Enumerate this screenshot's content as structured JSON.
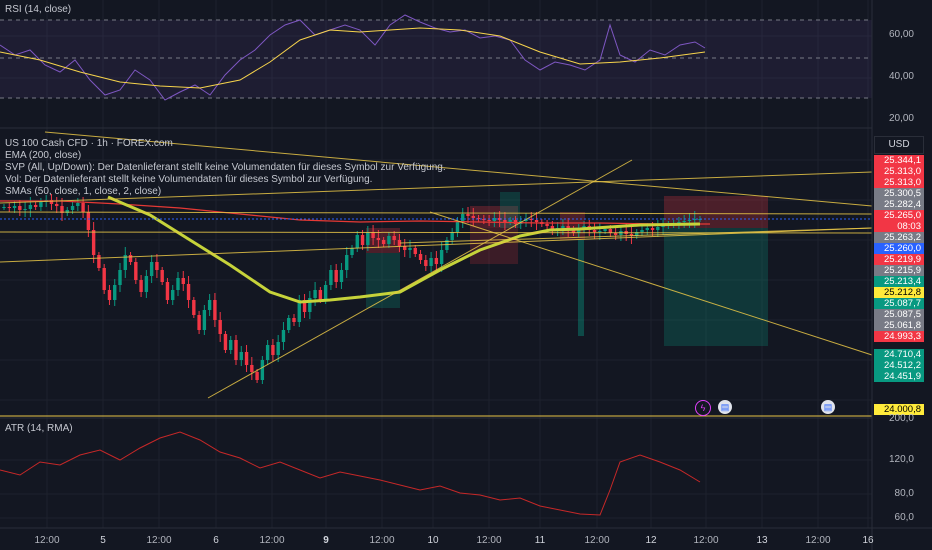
{
  "rsi_pane": {
    "label": "RSI (14, close)",
    "axis_ticks": [
      "60,00",
      "40,00",
      "20,00"
    ]
  },
  "main_legend": {
    "symbol": "US 100 Cash CFD · 1h · FOREX.com",
    "ema": "EMA (200, close)",
    "svp": "SVP (All, Up/Down): Der Datenlieferant stellt keine Volumendaten für dieses Symbol zur Verfügung.",
    "vol": "Vol: Der Datenlieferant stellt keine Volumendaten für dieses Symbol zur Verfügung.",
    "smas": "SMAs (50, close, 1, close, 2, close)"
  },
  "currency": "USD",
  "price_tags": [
    {
      "text": "25.344,1",
      "bg": "#f23645",
      "fg": "#ffffff"
    },
    {
      "text": "25.313,0",
      "bg": "#f23645",
      "fg": "#ffffff"
    },
    {
      "text": "25.313,0",
      "bg": "#f23645",
      "fg": "#ffffff"
    },
    {
      "text": "25.300,5",
      "bg": "#787b86",
      "fg": "#ffffff"
    },
    {
      "text": "25.282,4",
      "bg": "#787b86",
      "fg": "#ffffff"
    },
    {
      "text": "25.265,0",
      "bg": "#f23645",
      "fg": "#ffffff"
    },
    {
      "text": "08:03",
      "bg": "#f23645",
      "fg": "#ffffff"
    },
    {
      "text": "25.263,2",
      "bg": "#787b86",
      "fg": "#ffffff"
    },
    {
      "text": "25.260,0",
      "bg": "#2962ff",
      "fg": "#ffffff"
    },
    {
      "text": "25.219,9",
      "bg": "#f23645",
      "fg": "#ffffff"
    },
    {
      "text": "25.215,9",
      "bg": "#787b86",
      "fg": "#ffffff"
    },
    {
      "text": "25.213,4",
      "bg": "#089981",
      "fg": "#ffffff"
    },
    {
      "text": "25.212,8",
      "bg": "#ffeb3b",
      "fg": "#000000"
    },
    {
      "text": "25.087,7",
      "bg": "#089981",
      "fg": "#ffffff"
    },
    {
      "text": "25.087,5",
      "bg": "#787b86",
      "fg": "#ffffff"
    },
    {
      "text": "25.061,8",
      "bg": "#787b86",
      "fg": "#ffffff"
    },
    {
      "text": "24.993,3",
      "bg": "#f23645",
      "fg": "#ffffff"
    },
    {
      "text": "24.710,4",
      "bg": "#089981",
      "fg": "#ffffff"
    },
    {
      "text": "24.512,2",
      "bg": "#089981",
      "fg": "#ffffff"
    },
    {
      "text": "24.451,9",
      "bg": "#089981",
      "fg": "#ffffff"
    },
    {
      "text": "24.000,8",
      "bg": "#ffeb3b",
      "fg": "#000000"
    }
  ],
  "atr_pane": {
    "label": "ATR (14, RMA)",
    "axis_ticks": [
      "200,0",
      "120,0",
      "80,0",
      "60,0"
    ]
  },
  "time_axis": [
    "12:00",
    "5",
    "12:00",
    "6",
    "12:00",
    "9",
    "12:00",
    "10",
    "12:00",
    "11",
    "12:00",
    "12",
    "12:00",
    "13",
    "12:00",
    "16"
  ],
  "events": [
    {
      "icon": "lightning-icon",
      "glyph": "ϟ"
    },
    {
      "icon": "us-flag-icon",
      "glyph": "▤"
    },
    {
      "icon": "us-flag-icon",
      "glyph": "▤"
    }
  ],
  "colors": {
    "background": "#131722",
    "up": "#089981",
    "down": "#f23645",
    "rsi": "#7e57c2",
    "rsi_ma": "#f7d44c",
    "ema": "#e53935",
    "sma": "#c6d33a",
    "trendline": "#e8c547",
    "price_line": "#2962ff",
    "atr": "#c62828"
  }
}
